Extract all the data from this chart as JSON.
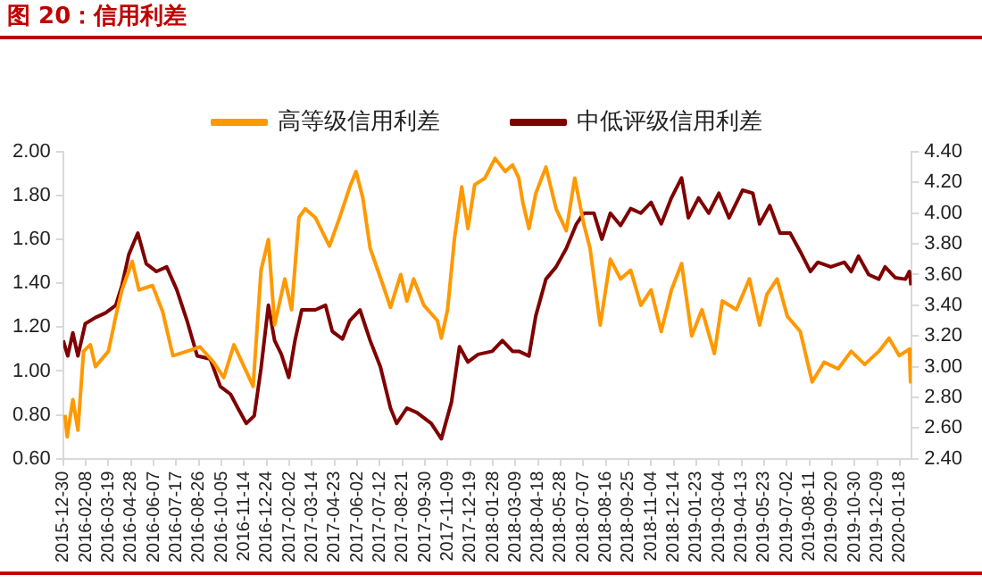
{
  "chart_data": {
    "type": "line",
    "title": "图 20：信用利差",
    "legend": "top",
    "grid": false,
    "marker": "none",
    "line_style": "solid",
    "xlim": [
      "2015-12-30",
      "2020-02-08"
    ],
    "xticks": [
      "2015-12-30",
      "2016-02-08",
      "2016-03-19",
      "2016-04-28",
      "2016-06-07",
      "2016-07-17",
      "2016-08-26",
      "2016-10-05",
      "2016-11-14",
      "2016-12-24",
      "2017-02-02",
      "2017-03-14",
      "2017-04-23",
      "2017-06-02",
      "2017-07-12",
      "2017-08-21",
      "2017-09-30",
      "2017-11-09",
      "2017-12-19",
      "2018-01-28",
      "2018-03-09",
      "2018-04-18",
      "2018-05-28",
      "2018-07-07",
      "2018-08-16",
      "2018-09-25",
      "2018-11-04",
      "2018-12-14",
      "2019-01-23",
      "2019-03-04",
      "2019-04-13",
      "2019-05-23",
      "2019-07-02",
      "2019-08-11",
      "2019-09-20",
      "2019-10-30",
      "2019-12-09",
      "2020-01-18"
    ],
    "ylim": [
      0.6,
      2.0
    ],
    "yticks": [
      {
        "value": 0.6,
        "label": "0.60"
      },
      {
        "value": 0.8,
        "label": "0.80"
      },
      {
        "value": 1.0,
        "label": "1.00"
      },
      {
        "value": 1.2,
        "label": "1.20"
      },
      {
        "value": 1.4,
        "label": "1.40"
      },
      {
        "value": 1.6,
        "label": "1.60"
      },
      {
        "value": 1.8,
        "label": "1.80"
      },
      {
        "value": 2.0,
        "label": "2.00"
      }
    ],
    "y2lim": [
      2.4,
      4.4
    ],
    "y2ticks": [
      {
        "value": 2.4,
        "label": "2.40"
      },
      {
        "value": 2.6,
        "label": "2.60"
      },
      {
        "value": 2.8,
        "label": "2.80"
      },
      {
        "value": 3.0,
        "label": "3.00"
      },
      {
        "value": 3.2,
        "label": "3.20"
      },
      {
        "value": 3.4,
        "label": "3.40"
      },
      {
        "value": 3.6,
        "label": "3.60"
      },
      {
        "value": 3.8,
        "label": "3.80"
      },
      {
        "value": 4.0,
        "label": "4.00"
      },
      {
        "value": 4.2,
        "label": "4.20"
      },
      {
        "value": 4.4,
        "label": "4.40"
      }
    ],
    "series": [
      {
        "name": "高等级信用利差",
        "color": "#ff9900",
        "axis": "y",
        "x": [
          "2016-01-02",
          "2016-01-06",
          "2016-01-16",
          "2016-01-25",
          "2016-02-04",
          "2016-02-16",
          "2016-02-25",
          "2016-03-19",
          "2016-04-01",
          "2016-04-12",
          "2016-04-30",
          "2016-05-12",
          "2016-06-05",
          "2016-06-23",
          "2016-07-11",
          "2016-08-05",
          "2016-08-28",
          "2016-09-21",
          "2016-10-09",
          "2016-10-27",
          "2016-11-14",
          "2016-11-30",
          "2016-12-14",
          "2016-12-27",
          "2017-01-07",
          "2017-01-25",
          "2017-02-06",
          "2017-02-19",
          "2017-03-02",
          "2017-03-20",
          "2017-04-14",
          "2017-05-02",
          "2017-05-20",
          "2017-05-31",
          "2017-06-12",
          "2017-06-25",
          "2017-07-18",
          "2017-07-31",
          "2017-08-18",
          "2017-08-29",
          "2017-09-10",
          "2017-09-28",
          "2017-10-22",
          "2017-10-29",
          "2017-11-09",
          "2017-11-21",
          "2017-12-04",
          "2017-12-15",
          "2017-12-27",
          "2018-01-14",
          "2018-02-01",
          "2018-02-19",
          "2018-03-04",
          "2018-03-15",
          "2018-03-22",
          "2018-04-02",
          "2018-04-14",
          "2018-05-02",
          "2018-05-20",
          "2018-06-07",
          "2018-06-22",
          "2018-07-08",
          "2018-07-19",
          "2018-08-06",
          "2018-08-24",
          "2018-09-11",
          "2018-09-29",
          "2018-10-17",
          "2018-11-04",
          "2018-11-22",
          "2018-12-10",
          "2018-12-28",
          "2019-01-15",
          "2019-02-02",
          "2019-02-24",
          "2019-03-10",
          "2019-04-04",
          "2019-04-27",
          "2019-05-15",
          "2019-05-28",
          "2019-06-15",
          "2019-07-03",
          "2019-07-26",
          "2019-08-16",
          "2019-09-06",
          "2019-10-01",
          "2019-10-24",
          "2019-11-17",
          "2019-12-12",
          "2019-12-30",
          "2020-01-17",
          "2020-02-04",
          "2020-02-06"
        ],
        "values": [
          0.8,
          0.7,
          0.87,
          0.73,
          1.09,
          1.12,
          1.02,
          1.09,
          1.25,
          1.37,
          1.5,
          1.37,
          1.39,
          1.27,
          1.07,
          1.09,
          1.11,
          1.04,
          0.97,
          1.12,
          1.02,
          0.93,
          1.46,
          1.6,
          1.21,
          1.42,
          1.28,
          1.7,
          1.74,
          1.7,
          1.57,
          1.7,
          1.84,
          1.91,
          1.79,
          1.56,
          1.39,
          1.29,
          1.44,
          1.32,
          1.42,
          1.3,
          1.23,
          1.15,
          1.28,
          1.6,
          1.84,
          1.65,
          1.85,
          1.88,
          1.97,
          1.91,
          1.94,
          1.88,
          1.77,
          1.65,
          1.81,
          1.93,
          1.74,
          1.64,
          1.88,
          1.67,
          1.56,
          1.21,
          1.51,
          1.42,
          1.46,
          1.3,
          1.37,
          1.18,
          1.37,
          1.49,
          1.16,
          1.28,
          1.08,
          1.32,
          1.28,
          1.42,
          1.21,
          1.35,
          1.42,
          1.25,
          1.18,
          0.95,
          1.04,
          1.01,
          1.09,
          1.03,
          1.09,
          1.15,
          1.07,
          1.1,
          0.95
        ]
      },
      {
        "name": "中低评级信用利差",
        "color": "#7f0000",
        "axis": "y2",
        "x": [
          "2015-12-30",
          "2016-01-07",
          "2016-01-16",
          "2016-01-25",
          "2016-02-07",
          "2016-02-25",
          "2016-03-14",
          "2016-04-01",
          "2016-04-12",
          "2016-04-24",
          "2016-05-10",
          "2016-05-25",
          "2016-06-12",
          "2016-06-30",
          "2016-07-18",
          "2016-08-05",
          "2016-08-23",
          "2016-09-15",
          "2016-10-03",
          "2016-10-21",
          "2016-11-03",
          "2016-11-18",
          "2016-12-02",
          "2016-12-14",
          "2016-12-27",
          "2017-01-07",
          "2017-01-19",
          "2017-02-01",
          "2017-02-12",
          "2017-02-24",
          "2017-03-20",
          "2017-04-07",
          "2017-04-19",
          "2017-05-07",
          "2017-05-20",
          "2017-06-07",
          "2017-06-25",
          "2017-07-13",
          "2017-07-31",
          "2017-08-11",
          "2017-08-29",
          "2017-09-16",
          "2017-10-11",
          "2017-10-29",
          "2017-11-16",
          "2017-11-30",
          "2017-12-15",
          "2018-01-02",
          "2018-01-27",
          "2018-02-14",
          "2018-03-04",
          "2018-03-15",
          "2018-04-02",
          "2018-04-14",
          "2018-05-02",
          "2018-05-20",
          "2018-06-07",
          "2018-06-25",
          "2018-07-08",
          "2018-07-26",
          "2018-08-09",
          "2018-08-24",
          "2018-09-11",
          "2018-09-29",
          "2018-10-17",
          "2018-11-04",
          "2018-11-22",
          "2018-12-10",
          "2018-12-28",
          "2019-01-09",
          "2019-01-27",
          "2019-02-14",
          "2019-03-04",
          "2019-03-22",
          "2019-04-15",
          "2019-05-03",
          "2019-05-15",
          "2019-06-02",
          "2019-06-20",
          "2019-07-08",
          "2019-07-26",
          "2019-08-13",
          "2019-08-26",
          "2019-09-18",
          "2019-10-12",
          "2019-10-24",
          "2019-11-06",
          "2019-11-24",
          "2019-12-12",
          "2019-12-23",
          "2020-01-10",
          "2020-01-28",
          "2020-02-04",
          "2020-02-07"
        ],
        "values": [
          3.17,
          3.07,
          3.22,
          3.07,
          3.28,
          3.32,
          3.35,
          3.4,
          3.53,
          3.73,
          3.87,
          3.67,
          3.62,
          3.65,
          3.5,
          3.3,
          3.07,
          3.05,
          2.87,
          2.82,
          2.73,
          2.63,
          2.68,
          2.99,
          3.4,
          3.17,
          3.08,
          2.93,
          3.17,
          3.37,
          3.37,
          3.4,
          3.23,
          3.18,
          3.3,
          3.37,
          3.17,
          3.0,
          2.73,
          2.63,
          2.73,
          2.7,
          2.63,
          2.53,
          2.77,
          3.13,
          3.03,
          3.08,
          3.1,
          3.17,
          3.1,
          3.1,
          3.07,
          3.33,
          3.57,
          3.65,
          3.77,
          3.93,
          4.0,
          4.0,
          3.83,
          4.0,
          3.92,
          4.03,
          4.0,
          4.07,
          3.93,
          4.1,
          4.23,
          3.97,
          4.1,
          4.0,
          4.13,
          3.97,
          4.15,
          4.13,
          3.93,
          4.05,
          3.87,
          3.87,
          3.75,
          3.62,
          3.68,
          3.65,
          3.68,
          3.62,
          3.72,
          3.6,
          3.57,
          3.65,
          3.58,
          3.57,
          3.62,
          3.53
        ]
      }
    ]
  }
}
